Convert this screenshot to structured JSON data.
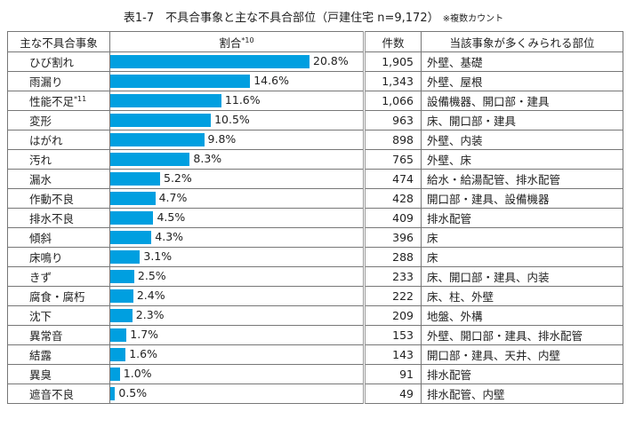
{
  "chart_data": {
    "type": "bar",
    "title": "表1-7　不具合事象と主な不具合部位（戸建住宅 n=9,172）",
    "title_note": "※複数カウント",
    "bar_color": "#009fe0",
    "columns": [
      "主な不具合事象",
      "割合",
      "件数",
      "当該事象が多くみられる部位"
    ],
    "ratio_note": "*10",
    "rows": [
      {
        "event": "ひび割れ",
        "note": "",
        "pct": 20.8,
        "pct_label": "20.8%",
        "count": "1,905",
        "parts": "外壁、基礎"
      },
      {
        "event": "雨漏り",
        "note": "",
        "pct": 14.6,
        "pct_label": "14.6%",
        "count": "1,343",
        "parts": "外壁、屋根"
      },
      {
        "event": "性能不足",
        "note": "*11",
        "pct": 11.6,
        "pct_label": "11.6%",
        "count": "1,066",
        "parts": "設備機器、開口部・建具"
      },
      {
        "event": "変形",
        "note": "",
        "pct": 10.5,
        "pct_label": "10.5%",
        "count": "963",
        "parts": "床、開口部・建具"
      },
      {
        "event": "はがれ",
        "note": "",
        "pct": 9.8,
        "pct_label": "9.8%",
        "count": "898",
        "parts": "外壁、内装"
      },
      {
        "event": "汚れ",
        "note": "",
        "pct": 8.3,
        "pct_label": "8.3%",
        "count": "765",
        "parts": "外壁、床"
      },
      {
        "event": "漏水",
        "note": "",
        "pct": 5.2,
        "pct_label": "5.2%",
        "count": "474",
        "parts": "給水・給湯配管、排水配管"
      },
      {
        "event": "作動不良",
        "note": "",
        "pct": 4.7,
        "pct_label": "4.7%",
        "count": "428",
        "parts": "開口部・建具、設備機器"
      },
      {
        "event": "排水不良",
        "note": "",
        "pct": 4.5,
        "pct_label": "4.5%",
        "count": "409",
        "parts": "排水配管"
      },
      {
        "event": "傾斜",
        "note": "",
        "pct": 4.3,
        "pct_label": "4.3%",
        "count": "396",
        "parts": "床"
      },
      {
        "event": "床鳴り",
        "note": "",
        "pct": 3.1,
        "pct_label": "3.1%",
        "count": "288",
        "parts": "床"
      },
      {
        "event": "きず",
        "note": "",
        "pct": 2.5,
        "pct_label": "2.5%",
        "count": "233",
        "parts": "床、開口部・建具、内装"
      },
      {
        "event": "腐食・腐朽",
        "note": "",
        "pct": 2.4,
        "pct_label": "2.4%",
        "count": "222",
        "parts": "床、柱、外壁"
      },
      {
        "event": "沈下",
        "note": "",
        "pct": 2.3,
        "pct_label": "2.3%",
        "count": "209",
        "parts": "地盤、外構"
      },
      {
        "event": "異常音",
        "note": "",
        "pct": 1.7,
        "pct_label": "1.7%",
        "count": "153",
        "parts": "外壁、開口部・建具、排水配管"
      },
      {
        "event": "結露",
        "note": "",
        "pct": 1.6,
        "pct_label": "1.6%",
        "count": "143",
        "parts": "開口部・建具、天井、内壁"
      },
      {
        "event": "異臭",
        "note": "",
        "pct": 1.0,
        "pct_label": "1.0%",
        "count": "91",
        "parts": "排水配管"
      },
      {
        "event": "遮音不良",
        "note": "",
        "pct": 0.5,
        "pct_label": "0.5%",
        "count": "49",
        "parts": "排水配管、内壁"
      }
    ]
  }
}
